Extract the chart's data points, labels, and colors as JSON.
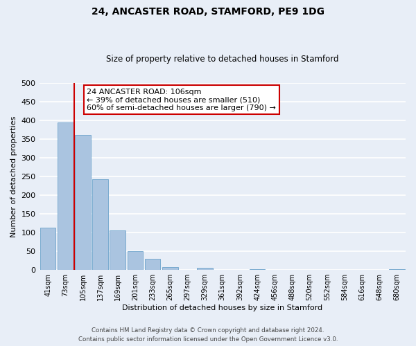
{
  "title": "24, ANCASTER ROAD, STAMFORD, PE9 1DG",
  "subtitle": "Size of property relative to detached houses in Stamford",
  "xlabel": "Distribution of detached houses by size in Stamford",
  "ylabel": "Number of detached properties",
  "bar_labels": [
    "41sqm",
    "73sqm",
    "105sqm",
    "137sqm",
    "169sqm",
    "201sqm",
    "233sqm",
    "265sqm",
    "297sqm",
    "329sqm",
    "361sqm",
    "392sqm",
    "424sqm",
    "456sqm",
    "488sqm",
    "520sqm",
    "552sqm",
    "584sqm",
    "616sqm",
    "648sqm",
    "680sqm"
  ],
  "bar_values": [
    112,
    393,
    360,
    243,
    105,
    50,
    30,
    8,
    0,
    5,
    0,
    0,
    2,
    0,
    0,
    0,
    0,
    0,
    0,
    0,
    2
  ],
  "bar_color": "#aac4e0",
  "bar_edge_color": "#7aabd0",
  "ylim": [
    0,
    500
  ],
  "yticks": [
    0,
    50,
    100,
    150,
    200,
    250,
    300,
    350,
    400,
    450,
    500
  ],
  "property_line_color": "#cc0000",
  "annotation_title": "24 ANCASTER ROAD: 106sqm",
  "annotation_line1": "← 39% of detached houses are smaller (510)",
  "annotation_line2": "60% of semi-detached houses are larger (790) →",
  "annotation_box_color": "#cc0000",
  "footer1": "Contains HM Land Registry data © Crown copyright and database right 2024.",
  "footer2": "Contains public sector information licensed under the Open Government Licence v3.0.",
  "background_color": "#e8eef7",
  "plot_bg_color": "#e8eef7",
  "grid_color": "#ffffff"
}
